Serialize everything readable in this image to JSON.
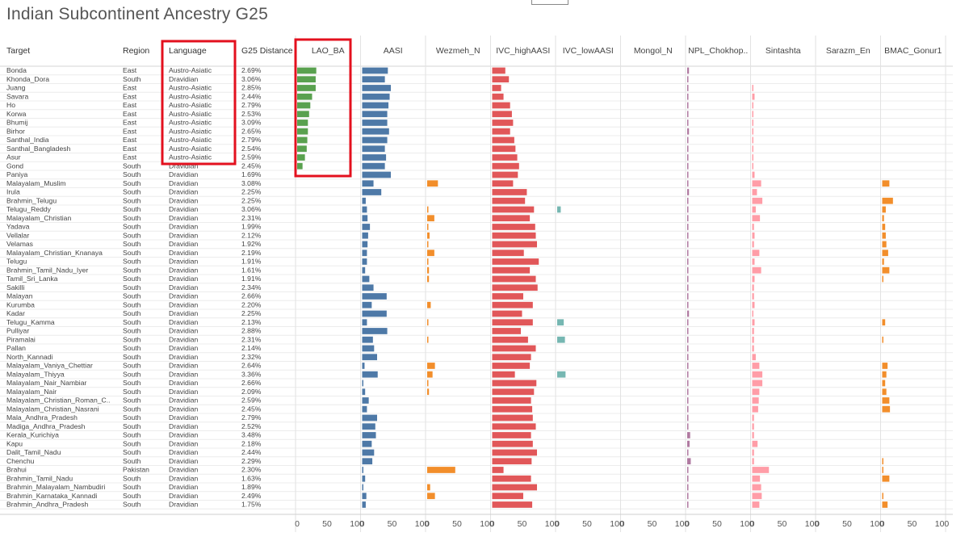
{
  "title": "Indian Subcontinent Ancestry G25",
  "table_headers": {
    "target": "Target",
    "region": "Region",
    "language": "Language",
    "distance": "G25 Distance"
  },
  "colors": {
    "lao_ba": "#59a14f",
    "aasi": "#4e79a7",
    "wezmeh": "#f28e2b",
    "ivc_high": "#e15759",
    "ivc_low": "#76b7b2",
    "mongol": "#c5a0b5",
    "npl": "#b07aa1",
    "sintashta": "#ff9da7",
    "sarazm": "#9c755f",
    "bmac": "#f28e2b",
    "highlight": "#e3101e"
  },
  "axis_ticks": [
    "0",
    "50",
    "100"
  ],
  "chart_data": {
    "type": "bar",
    "title": "Indian Subcontinent Ancestry G25",
    "xlim": [
      0,
      100
    ],
    "grid": true,
    "series_names": [
      "LAO_BA",
      "AASI",
      "Wezmeh_N",
      "IVC_highAASI",
      "IVC_lowAASI",
      "Mongol_N",
      "NPL_Chokhop..",
      "Sintashta",
      "Sarazm_En",
      "BMAC_Gonur1"
    ],
    "rows": [
      {
        "target": "Bonda",
        "region": "East",
        "language": "Austro-Asiatic",
        "distance": "2.69%",
        "values": [
          32,
          43,
          0,
          22,
          0,
          0,
          3,
          0,
          0,
          0
        ]
      },
      {
        "target": "Khonda_Dora",
        "region": "South",
        "language": "Dravidian",
        "distance": "3.06%",
        "values": [
          31,
          38,
          0,
          28,
          0,
          0,
          1,
          0,
          0,
          0
        ]
      },
      {
        "target": "Juang",
        "region": "East",
        "language": "Austro-Asiatic",
        "distance": "2.85%",
        "values": [
          31,
          48,
          0,
          15,
          0,
          0,
          1,
          2,
          0,
          0
        ]
      },
      {
        "target": "Savara",
        "region": "East",
        "language": "Austro-Asiatic",
        "distance": "2.44%",
        "values": [
          25,
          46,
          0,
          19,
          0,
          0,
          1,
          4,
          0,
          0
        ]
      },
      {
        "target": "Ho",
        "region": "East",
        "language": "Austro-Asiatic",
        "distance": "2.79%",
        "values": [
          22,
          44,
          0,
          30,
          0,
          0,
          1,
          1,
          0,
          0
        ]
      },
      {
        "target": "Korwa",
        "region": "East",
        "language": "Austro-Asiatic",
        "distance": "2.53%",
        "values": [
          20,
          42,
          0,
          33,
          0,
          0,
          1,
          1,
          0,
          0
        ]
      },
      {
        "target": "Bhumij",
        "region": "East",
        "language": "Austro-Asiatic",
        "distance": "3.09%",
        "values": [
          18,
          42,
          0,
          35,
          0,
          0,
          1,
          1,
          0,
          0
        ]
      },
      {
        "target": "Birhor",
        "region": "East",
        "language": "Austro-Asiatic",
        "distance": "2.65%",
        "values": [
          18,
          45,
          0,
          30,
          0,
          0,
          3,
          1,
          0,
          0
        ]
      },
      {
        "target": "Santhal_India",
        "region": "East",
        "language": "Austro-Asiatic",
        "distance": "2.79%",
        "values": [
          17,
          42,
          0,
          37,
          0,
          0,
          1,
          1,
          0,
          0
        ]
      },
      {
        "target": "Santhal_Bangladesh",
        "region": "East",
        "language": "Austro-Asiatic",
        "distance": "2.54%",
        "values": [
          16,
          38,
          0,
          39,
          0,
          0,
          1,
          1,
          0,
          0
        ]
      },
      {
        "target": "Asur",
        "region": "East",
        "language": "Austro-Asiatic",
        "distance": "2.59%",
        "values": [
          13,
          40,
          0,
          42,
          0,
          0,
          1,
          1,
          0,
          0
        ]
      },
      {
        "target": "Gond",
        "region": "South",
        "language": "Dravidian",
        "distance": "2.45%",
        "values": [
          9,
          38,
          0,
          45,
          0,
          0,
          1,
          2,
          0,
          0
        ]
      },
      {
        "target": "Paniya",
        "region": "South",
        "language": "Dravidian",
        "distance": "1.69%",
        "values": [
          0,
          48,
          0,
          43,
          0,
          0,
          1,
          4,
          0,
          0
        ]
      },
      {
        "target": "Malayalam_Muslim",
        "region": "South",
        "language": "Dravidian",
        "distance": "3.08%",
        "values": [
          0,
          19,
          18,
          35,
          0,
          0,
          2,
          15,
          0,
          12
        ]
      },
      {
        "target": "Irula",
        "region": "South",
        "language": "Dravidian",
        "distance": "2.25%",
        "values": [
          0,
          32,
          0,
          58,
          0,
          0,
          3,
          8,
          0,
          0
        ]
      },
      {
        "target": "Brahmin_Telugu",
        "region": "South",
        "language": "Dravidian",
        "distance": "2.25%",
        "values": [
          0,
          6,
          0,
          55,
          0,
          0,
          1,
          17,
          0,
          18
        ]
      },
      {
        "target": "Telugu_Reddy",
        "region": "South",
        "language": "Dravidian",
        "distance": "3.06%",
        "values": [
          0,
          8,
          2,
          70,
          6,
          0,
          1,
          6,
          0,
          6
        ]
      },
      {
        "target": "Malayalam_Christian",
        "region": "South",
        "language": "Dravidian",
        "distance": "2.31%",
        "values": [
          0,
          9,
          12,
          63,
          0,
          0,
          1,
          13,
          0,
          3
        ]
      },
      {
        "target": "Yadava",
        "region": "South",
        "language": "Dravidian",
        "distance": "1.99%",
        "values": [
          0,
          13,
          1,
          72,
          0,
          0,
          1,
          3,
          0,
          5
        ]
      },
      {
        "target": "Vellalar",
        "region": "South",
        "language": "Dravidian",
        "distance": "2.12%",
        "values": [
          0,
          10,
          4,
          73,
          0,
          0,
          1,
          4,
          0,
          6
        ]
      },
      {
        "target": "Velamas",
        "region": "South",
        "language": "Dravidian",
        "distance": "1.92%",
        "values": [
          0,
          9,
          2,
          75,
          0,
          0,
          1,
          3,
          0,
          7
        ]
      },
      {
        "target": "Malayalam_Christian_Knanaya",
        "region": "South",
        "language": "Dravidian",
        "distance": "2.19%",
        "values": [
          0,
          8,
          12,
          53,
          0,
          0,
          1,
          12,
          0,
          10
        ]
      },
      {
        "target": "Telugu",
        "region": "South",
        "language": "Dravidian",
        "distance": "1.91%",
        "values": [
          0,
          8,
          1,
          78,
          0,
          0,
          1,
          4,
          0,
          3
        ]
      },
      {
        "target": "Brahmin_Tamil_Nadu_Iyer",
        "region": "South",
        "language": "Dravidian",
        "distance": "1.61%",
        "values": [
          0,
          5,
          3,
          63,
          0,
          0,
          1,
          15,
          0,
          12
        ]
      },
      {
        "target": "Tamil_Sri_Lanka",
        "region": "South",
        "language": "Dravidian",
        "distance": "1.91%",
        "values": [
          0,
          12,
          3,
          73,
          0,
          0,
          1,
          4,
          0,
          2
        ]
      },
      {
        "target": "Sakilli",
        "region": "South",
        "language": "Dravidian",
        "distance": "2.34%",
        "values": [
          0,
          19,
          0,
          76,
          0,
          0,
          1,
          3,
          0,
          0
        ]
      },
      {
        "target": "Malayan",
        "region": "South",
        "language": "Dravidian",
        "distance": "2.66%",
        "values": [
          0,
          41,
          0,
          52,
          0,
          0,
          1,
          3,
          0,
          0
        ]
      },
      {
        "target": "Kurumba",
        "region": "South",
        "language": "Dravidian",
        "distance": "2.20%",
        "values": [
          0,
          16,
          6,
          68,
          0,
          0,
          1,
          4,
          0,
          0
        ]
      },
      {
        "target": "Kadar",
        "region": "South",
        "language": "Dravidian",
        "distance": "2.25%",
        "values": [
          0,
          41,
          0,
          50,
          0,
          0,
          3,
          1,
          0,
          0
        ]
      },
      {
        "target": "Telugu_Kamma",
        "region": "South",
        "language": "Dravidian",
        "distance": "2.13%",
        "values": [
          0,
          8,
          1,
          68,
          11,
          0,
          1,
          4,
          0,
          5
        ]
      },
      {
        "target": "Pulliyar",
        "region": "South",
        "language": "Dravidian",
        "distance": "2.88%",
        "values": [
          0,
          42,
          0,
          48,
          0,
          0,
          1,
          3,
          0,
          0
        ]
      },
      {
        "target": "Piramalai",
        "region": "South",
        "language": "Dravidian",
        "distance": "2.31%",
        "values": [
          0,
          18,
          1,
          60,
          13,
          0,
          1,
          3,
          0,
          1
        ]
      },
      {
        "target": "Pallan",
        "region": "South",
        "language": "Dravidian",
        "distance": "2.14%",
        "values": [
          0,
          20,
          0,
          73,
          0,
          0,
          1,
          3,
          0,
          0
        ]
      },
      {
        "target": "North_Kannadi",
        "region": "South",
        "language": "Dravidian",
        "distance": "2.32%",
        "values": [
          0,
          25,
          0,
          65,
          0,
          0,
          1,
          6,
          0,
          0
        ]
      },
      {
        "target": "Malayalam_Vaniya_Chettiar",
        "region": "South",
        "language": "Dravidian",
        "distance": "2.64%",
        "values": [
          0,
          4,
          13,
          63,
          0,
          0,
          1,
          12,
          0,
          9
        ]
      },
      {
        "target": "Malayalam_Thiyya",
        "region": "South",
        "language": "Dravidian",
        "distance": "3.36%",
        "values": [
          0,
          26,
          9,
          38,
          14,
          0,
          1,
          17,
          0,
          7
        ]
      },
      {
        "target": "Malayalam_Nair_Nambiar",
        "region": "South",
        "language": "Dravidian",
        "distance": "2.66%",
        "values": [
          0,
          1,
          1,
          74,
          0,
          0,
          1,
          17,
          0,
          5
        ]
      },
      {
        "target": "Malayalam_Nair",
        "region": "South",
        "language": "Dravidian",
        "distance": "2.09%",
        "values": [
          0,
          5,
          3,
          70,
          0,
          0,
          1,
          12,
          0,
          7
        ]
      },
      {
        "target": "Malayalam_Christian_Roman_C..",
        "region": "South",
        "language": "Dravidian",
        "distance": "2.59%",
        "values": [
          0,
          11,
          0,
          65,
          0,
          0,
          1,
          11,
          0,
          12
        ]
      },
      {
        "target": "Malayalam_Christian_Nasrani",
        "region": "South",
        "language": "Dravidian",
        "distance": "2.45%",
        "values": [
          0,
          8,
          0,
          67,
          0,
          0,
          1,
          10,
          0,
          13
        ]
      },
      {
        "target": "Mala_Andhra_Pradesh",
        "region": "South",
        "language": "Dravidian",
        "distance": "2.79%",
        "values": [
          0,
          25,
          0,
          68,
          0,
          0,
          1,
          3,
          0,
          0
        ]
      },
      {
        "target": "Madiga_Andhra_Pradesh",
        "region": "South",
        "language": "Dravidian",
        "distance": "2.52%",
        "values": [
          0,
          22,
          0,
          73,
          0,
          0,
          1,
          3,
          0,
          0
        ]
      },
      {
        "target": "Kerala_Kurichiya",
        "region": "South",
        "language": "Dravidian",
        "distance": "3.48%",
        "values": [
          0,
          23,
          0,
          65,
          0,
          0,
          5,
          3,
          0,
          0
        ]
      },
      {
        "target": "Kapu",
        "region": "South",
        "language": "Dravidian",
        "distance": "2.18%",
        "values": [
          0,
          16,
          0,
          68,
          0,
          0,
          4,
          9,
          0,
          0
        ]
      },
      {
        "target": "Dalit_Tamil_Nadu",
        "region": "South",
        "language": "Dravidian",
        "distance": "2.44%",
        "values": [
          0,
          20,
          0,
          75,
          0,
          0,
          1,
          3,
          0,
          0
        ]
      },
      {
        "target": "Chenchu",
        "region": "South",
        "language": "Dravidian",
        "distance": "2.29%",
        "values": [
          0,
          17,
          0,
          66,
          0,
          0,
          6,
          3,
          0,
          2
        ]
      },
      {
        "target": "Brahui",
        "region": "Pakistan",
        "language": "Dravidian",
        "distance": "2.30%",
        "values": [
          0,
          1,
          47,
          19,
          0,
          0,
          1,
          28,
          0,
          2
        ]
      },
      {
        "target": "Brahmin_Tamil_Nadu",
        "region": "South",
        "language": "Dravidian",
        "distance": "1.63%",
        "values": [
          0,
          5,
          0,
          65,
          0,
          0,
          1,
          13,
          0,
          12
        ]
      },
      {
        "target": "Brahmin_Malayalam_Nambudiri",
        "region": "South",
        "language": "Dravidian",
        "distance": "1.89%",
        "values": [
          0,
          1,
          5,
          75,
          0,
          0,
          1,
          15,
          0,
          0
        ]
      },
      {
        "target": "Brahmin_Karnataka_Kannadi",
        "region": "South",
        "language": "Dravidian",
        "distance": "2.49%",
        "values": [
          0,
          7,
          13,
          52,
          0,
          0,
          1,
          16,
          0,
          1
        ]
      },
      {
        "target": "Brahmin_Andhra_Pradesh",
        "region": "South",
        "language": "Dravidian",
        "distance": "1.75%",
        "values": [
          0,
          6,
          0,
          67,
          0,
          0,
          1,
          12,
          0,
          9
        ]
      }
    ]
  }
}
